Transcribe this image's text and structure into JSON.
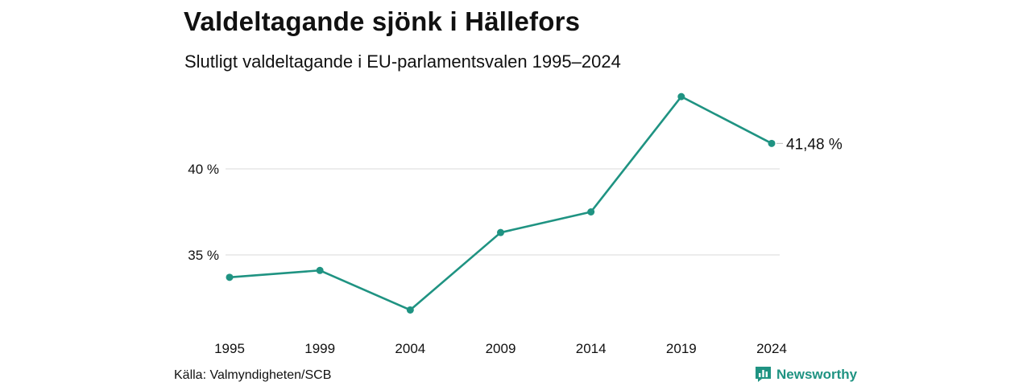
{
  "title": "Valdeltagande sjönk i Hällefors",
  "subtitle": "Slutligt valdeltagande i EU-parlamentsvalen 1995–2024",
  "source": "Källa: Valmyndigheten/SCB",
  "brand": "Newsworthy",
  "colors": {
    "line": "#1f9382",
    "grid": "#d9d9d9",
    "brand": "#1f9382"
  },
  "chart_data": {
    "type": "line",
    "title": "Valdeltagande sjönk i Hällefors",
    "subtitle": "Slutligt valdeltagande i EU-parlamentsvalen 1995–2024",
    "x": [
      "1995",
      "1999",
      "2004",
      "2009",
      "2014",
      "2019",
      "2024"
    ],
    "series": [
      {
        "values": [
          33.7,
          34.1,
          31.8,
          36.3,
          37.5,
          44.2,
          41.48
        ]
      }
    ],
    "y_ticks": [
      35,
      40
    ],
    "y_tick_labels": [
      "35 %",
      "40 %"
    ],
    "ylim": [
      30,
      45
    ],
    "grid": true,
    "end_label": "41,48 %",
    "xlabel": "",
    "ylabel": ""
  }
}
